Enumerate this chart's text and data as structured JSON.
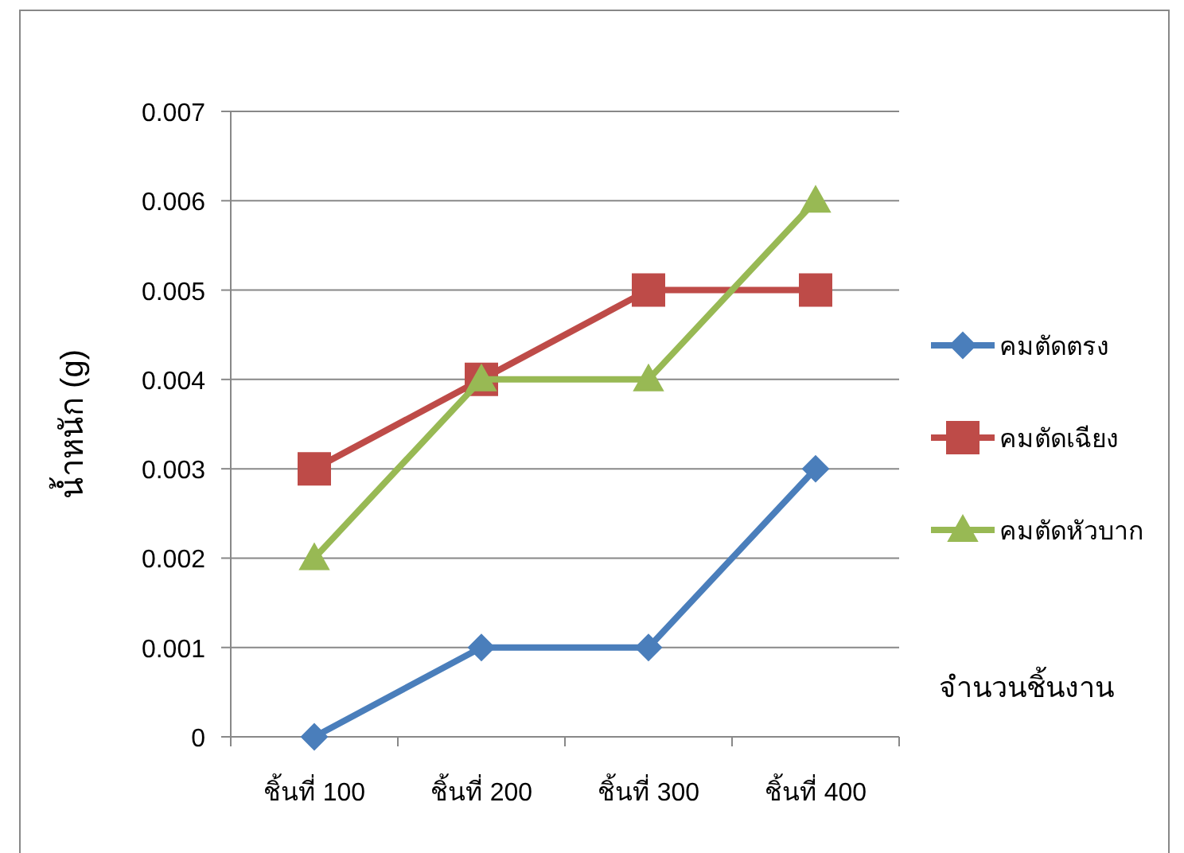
{
  "chart_data": {
    "type": "line",
    "ylabel": "น้ำหนัก (g)",
    "xlabel": "จำนวนชิ้นงาน",
    "categories": [
      "ชิ้นที่ 100",
      "ชิ้นที่ 200",
      "ชิ้นที่ 300",
      "ชิ้นที่ 400"
    ],
    "series": [
      {
        "name": "คมตัดตรง",
        "color": "#4a7ebb",
        "marker": "diamond",
        "values": [
          0,
          0.001,
          0.001,
          0.003
        ]
      },
      {
        "name": "คมตัดเฉียง",
        "color": "#be4b48",
        "marker": "square",
        "values": [
          0.003,
          0.004,
          0.005,
          0.005
        ]
      },
      {
        "name": "คมตัดหัวบาก",
        "color": "#98b954",
        "marker": "triangle",
        "values": [
          0.002,
          0.004,
          0.004,
          0.006
        ]
      }
    ],
    "ylim": [
      0,
      0.007
    ],
    "yticks": [
      0,
      0.001,
      0.002,
      0.003,
      0.004,
      0.005,
      0.006,
      0.007
    ],
    "grid": "y",
    "legend": "right",
    "line_style": "solid"
  }
}
